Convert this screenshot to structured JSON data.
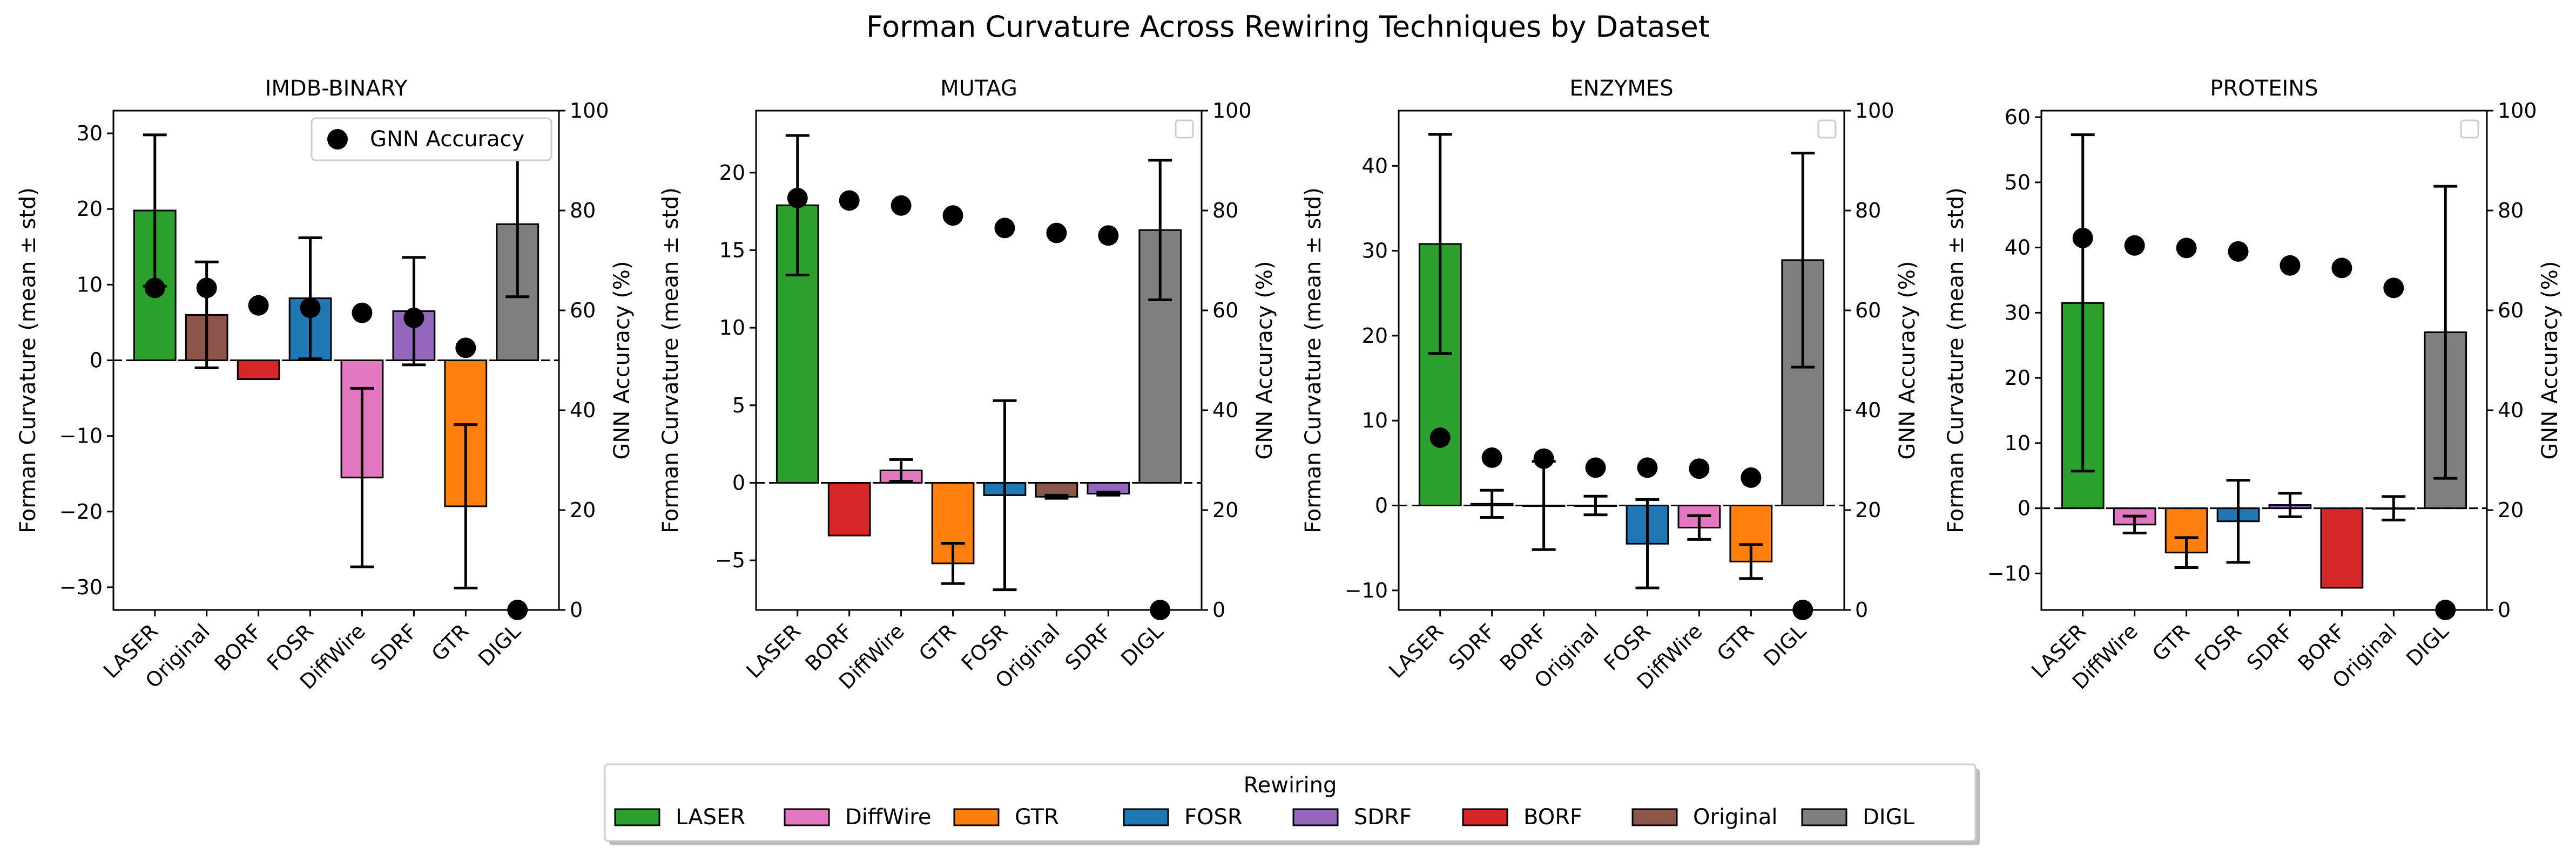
{
  "figure": {
    "title": "Forman Curvature Across Rewiring Techniques by Dataset"
  },
  "colors": {
    "LASER": "#2ca02c",
    "DiffWire": "#e377c2",
    "GTR": "#ff7f0e",
    "FOSR": "#1f77b4",
    "SDRF": "#9467bd",
    "BORF": "#d62728",
    "Original": "#8c564b",
    "DIGL": "#7f7f7f",
    "accuracy_marker": "#000000"
  },
  "legend": {
    "title": "Rewiring",
    "items": [
      "LASER",
      "DiffWire",
      "GTR",
      "FOSR",
      "SDRF",
      "BORF",
      "Original",
      "DIGL"
    ]
  },
  "accuracy_legend_label": "GNN Accuracy",
  "chart_data": [
    {
      "type": "bar",
      "title": "IMDB-BINARY",
      "ylabel": "Forman Curvature (mean ± std)",
      "y2label": "GNN Accuracy (%)",
      "ylim": [
        -33,
        33
      ],
      "yticks": [
        -30,
        -20,
        -10,
        0,
        10,
        20,
        30
      ],
      "y2lim": [
        0,
        100
      ],
      "y2ticks": [
        0,
        20,
        40,
        60,
        80,
        100
      ],
      "show_accuracy_legend": true,
      "categories": [
        "LASER",
        "Original",
        "BORF",
        "FOSR",
        "DiffWire",
        "SDRF",
        "GTR",
        "DIGL"
      ],
      "values": [
        19.8,
        6.0,
        -2.5,
        8.2,
        -15.5,
        6.5,
        -19.3,
        18.0
      ],
      "std": [
        10.0,
        7.0,
        0,
        8.0,
        11.8,
        7.1,
        10.8,
        9.6
      ],
      "accuracy": [
        64.5,
        64.5,
        61.0,
        60.5,
        59.5,
        58.5,
        52.5,
        0.0
      ]
    },
    {
      "type": "bar",
      "title": "MUTAG",
      "ylabel": "Forman Curvature (mean ± std)",
      "y2label": "GNN Accuracy (%)",
      "ylim": [
        -8.2,
        24.0
      ],
      "yticks": [
        -5,
        0,
        5,
        10,
        15,
        20
      ],
      "y2lim": [
        0,
        100
      ],
      "y2ticks": [
        0,
        20,
        40,
        60,
        80,
        100
      ],
      "show_accuracy_legend": false,
      "categories": [
        "LASER",
        "BORF",
        "DiffWire",
        "GTR",
        "FOSR",
        "Original",
        "SDRF",
        "DIGL"
      ],
      "values": [
        17.9,
        -3.4,
        0.8,
        -5.2,
        -0.8,
        -0.9,
        -0.7,
        16.3
      ],
      "std": [
        4.5,
        0,
        0.7,
        1.3,
        6.1,
        0.1,
        0.1,
        4.5
      ],
      "accuracy": [
        82.5,
        82.0,
        81.0,
        79.0,
        76.5,
        75.5,
        75.0,
        0.0
      ]
    },
    {
      "type": "bar",
      "title": "ENZYMES",
      "ylabel": "Forman Curvature (mean ± std)",
      "y2label": "GNN Accuracy (%)",
      "ylim": [
        -12.3,
        46.5
      ],
      "yticks": [
        -10,
        0,
        10,
        20,
        30,
        40
      ],
      "y2lim": [
        0,
        100
      ],
      "y2ticks": [
        0,
        20,
        40,
        60,
        80,
        100
      ],
      "show_accuracy_legend": false,
      "categories": [
        "LASER",
        "SDRF",
        "BORF",
        "Original",
        "FOSR",
        "DiffWire",
        "GTR",
        "DIGL"
      ],
      "values": [
        30.8,
        0.2,
        0.0,
        0.0,
        -4.5,
        -2.6,
        -6.6,
        28.9
      ],
      "std": [
        12.9,
        1.6,
        5.2,
        1.1,
        5.2,
        1.4,
        2.0,
        12.6
      ],
      "accuracy": [
        34.5,
        30.5,
        30.3,
        28.5,
        28.5,
        28.3,
        26.5,
        0.0
      ]
    },
    {
      "type": "bar",
      "title": "PROTEINS",
      "ylabel": "Forman Curvature (mean ± std)",
      "y2label": "GNN Accuracy (%)",
      "ylim": [
        -15.6,
        61.0
      ],
      "yticks": [
        -10,
        0,
        10,
        20,
        30,
        40,
        50,
        60
      ],
      "y2lim": [
        0,
        100
      ],
      "y2ticks": [
        0,
        20,
        40,
        60,
        80,
        100
      ],
      "show_accuracy_legend": false,
      "categories": [
        "LASER",
        "DiffWire",
        "GTR",
        "FOSR",
        "SDRF",
        "BORF",
        "Original",
        "DIGL"
      ],
      "values": [
        31.5,
        -2.5,
        -6.8,
        -2.0,
        0.5,
        -12.2,
        0.0,
        27.0
      ],
      "std": [
        25.8,
        1.3,
        2.3,
        6.3,
        1.8,
        0,
        1.8,
        22.4
      ],
      "accuracy": [
        74.5,
        73.0,
        72.5,
        71.8,
        69.0,
        68.5,
        64.5,
        0.0
      ]
    }
  ]
}
